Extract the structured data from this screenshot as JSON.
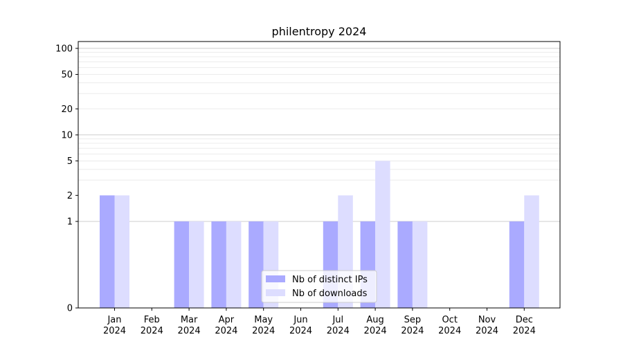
{
  "chart_data": {
    "type": "bar",
    "title": "philentropy 2024",
    "xlabel": "",
    "ylabel": "",
    "yscale": "symlog",
    "ylim": [
      0,
      120
    ],
    "yticks": [
      0,
      1,
      2,
      5,
      10,
      20,
      50,
      100
    ],
    "grid": "y-major-and-minor",
    "legend_position": "bottom-center",
    "categories": [
      {
        "month": "Jan",
        "year": "2024"
      },
      {
        "month": "Feb",
        "year": "2024"
      },
      {
        "month": "Mar",
        "year": "2024"
      },
      {
        "month": "Apr",
        "year": "2024"
      },
      {
        "month": "May",
        "year": "2024"
      },
      {
        "month": "Jun",
        "year": "2024"
      },
      {
        "month": "Jul",
        "year": "2024"
      },
      {
        "month": "Aug",
        "year": "2024"
      },
      {
        "month": "Sep",
        "year": "2024"
      },
      {
        "month": "Oct",
        "year": "2024"
      },
      {
        "month": "Nov",
        "year": "2024"
      },
      {
        "month": "Dec",
        "year": "2024"
      }
    ],
    "series": [
      {
        "name": "Nb of distinct IPs",
        "color": "#aaaaff",
        "values": [
          2,
          0,
          1,
          1,
          1,
          0,
          1,
          1,
          1,
          0,
          0,
          1
        ]
      },
      {
        "name": "Nb of downloads",
        "color": "#ddddff",
        "values": [
          2,
          0,
          1,
          1,
          1,
          0,
          2,
          5,
          1,
          0,
          0,
          2
        ]
      }
    ]
  }
}
